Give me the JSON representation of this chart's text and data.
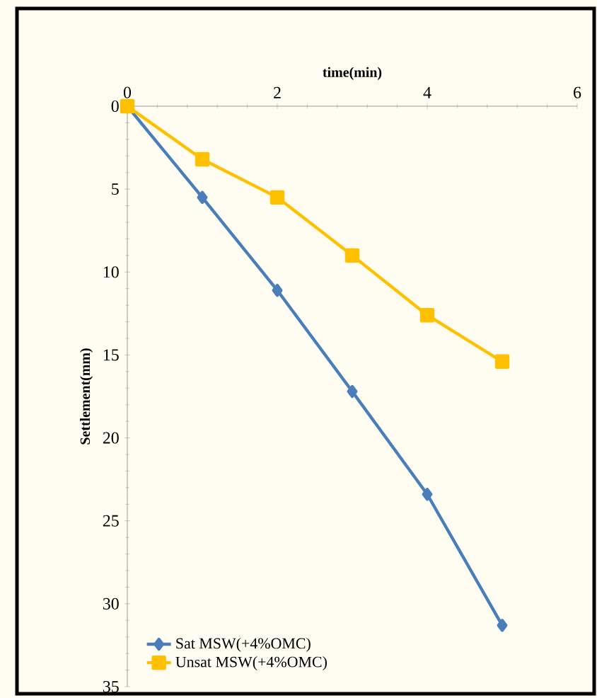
{
  "chart_data": {
    "type": "line",
    "xlabel": "time(min)",
    "ylabel": "Settlement(mm)",
    "xlim": [
      0,
      6
    ],
    "xticks": [
      0,
      2,
      4,
      6
    ],
    "ylim": [
      35,
      0
    ],
    "yticks": [
      0,
      5,
      10,
      15,
      20,
      25,
      30,
      35
    ],
    "legend": "bottom left",
    "grid": false,
    "series": [
      {
        "name": "Sat MSW(+4%OMC)",
        "color": "#4a7ebb",
        "marker": "diamond",
        "x": [
          0,
          1,
          2,
          3,
          4,
          5
        ],
        "values": [
          0,
          5.5,
          11.1,
          17.2,
          23.4,
          31.3
        ]
      },
      {
        "name": "Unsat MSW(+4%OMC)",
        "color": "#ffc000",
        "marker": "square",
        "x": [
          0,
          1,
          2,
          3,
          4,
          5
        ],
        "values": [
          0,
          3.2,
          5.5,
          9.0,
          12.6,
          15.4
        ]
      }
    ]
  }
}
